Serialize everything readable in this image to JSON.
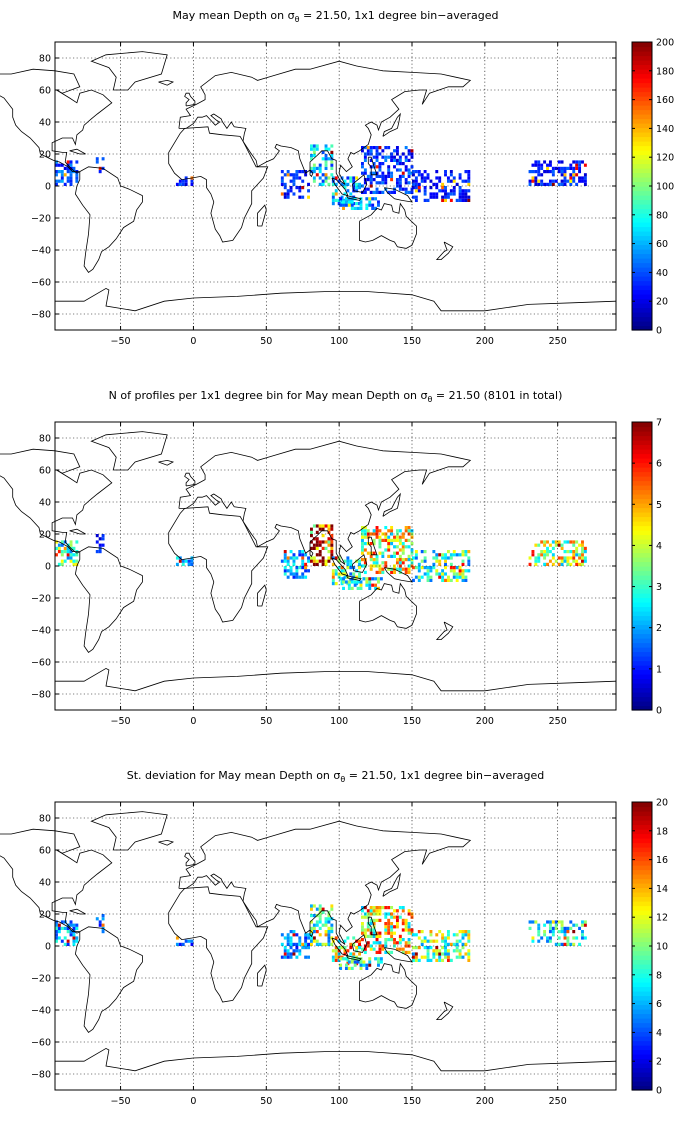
{
  "chart_data": [
    {
      "type": "heatmap",
      "title_pre": "May mean Depth on σ",
      "title_sub": "θ",
      "title_post": " = 21.50, 1x1 degree bin−averaged",
      "xlim": [
        -95,
        290
      ],
      "ylim": [
        -90,
        90
      ],
      "x_ticks": [
        -50,
        0,
        50,
        100,
        150,
        200,
        250
      ],
      "x_tick_labels": [
        "−50",
        "0",
        "50",
        "100",
        "150",
        "200",
        "250"
      ],
      "y_ticks": [
        80,
        60,
        40,
        20,
        0,
        -20,
        -40,
        -60,
        -80
      ],
      "y_tick_labels": [
        "80",
        "60",
        "40",
        "20",
        "0",
        "−20",
        "−40",
        "−60",
        "−80"
      ],
      "grid": true,
      "colormap": "jet",
      "colorbar": {
        "min": 0,
        "max": 200,
        "ticks": [
          0,
          20,
          40,
          60,
          80,
          100,
          120,
          140,
          160,
          180,
          200
        ],
        "tick_labels": [
          "0",
          "20",
          "40",
          "60",
          "80",
          "100",
          "120",
          "140",
          "160",
          "180",
          "200"
        ]
      },
      "data_regions": [
        {
          "lon": [
            -95,
            -80
          ],
          "lat": [
            0,
            15
          ],
          "value": 40
        },
        {
          "lon": [
            -67,
            -62
          ],
          "lat": [
            8,
            20
          ],
          "value": 30
        },
        {
          "lon": [
            -12,
            0
          ],
          "lat": [
            0,
            5
          ],
          "value": 30
        },
        {
          "lon": [
            60,
            80
          ],
          "lat": [
            -8,
            10
          ],
          "value": 30
        },
        {
          "lon": [
            80,
            95
          ],
          "lat": [
            0,
            25
          ],
          "value": 70
        },
        {
          "lon": [
            95,
            115
          ],
          "lat": [
            -12,
            5
          ],
          "value": 60
        },
        {
          "lon": [
            115,
            150
          ],
          "lat": [
            -5,
            25
          ],
          "value": 35
        },
        {
          "lon": [
            150,
            190
          ],
          "lat": [
            -10,
            10
          ],
          "value": 30
        },
        {
          "lon": [
            100,
            130
          ],
          "lat": [
            -15,
            -8
          ],
          "value": 55
        },
        {
          "lon": [
            230,
            270
          ],
          "lat": [
            0,
            15
          ],
          "value": 30
        }
      ]
    },
    {
      "type": "heatmap",
      "title_pre": "N of profiles per 1x1 degree bin for May mean Depth on σ",
      "title_sub": "θ",
      "title_post": " = 21.50 (8101 in total)",
      "xlim": [
        -95,
        290
      ],
      "ylim": [
        -90,
        90
      ],
      "x_ticks": [
        -50,
        0,
        50,
        100,
        150,
        200,
        250
      ],
      "x_tick_labels": [
        "−50",
        "0",
        "50",
        "100",
        "150",
        "200",
        "250"
      ],
      "y_ticks": [
        80,
        60,
        40,
        20,
        0,
        -20,
        -40,
        -60,
        -80
      ],
      "y_tick_labels": [
        "80",
        "60",
        "40",
        "20",
        "0",
        "−20",
        "−40",
        "−60",
        "−80"
      ],
      "grid": true,
      "colormap": "jet",
      "colorbar": {
        "min": 0,
        "max": 7,
        "ticks": [
          0,
          1,
          2,
          3,
          4,
          5,
          6,
          7
        ],
        "tick_labels": [
          "0",
          "1",
          "2",
          "3",
          "4",
          "5",
          "6",
          "7"
        ]
      },
      "data_regions": [
        {
          "lon": [
            -95,
            -80
          ],
          "lat": [
            0,
            15
          ],
          "value": 3
        },
        {
          "lon": [
            -67,
            -62
          ],
          "lat": [
            8,
            20
          ],
          "value": 1
        },
        {
          "lon": [
            -12,
            0
          ],
          "lat": [
            0,
            5
          ],
          "value": 2
        },
        {
          "lon": [
            60,
            80
          ],
          "lat": [
            -8,
            10
          ],
          "value": 2
        },
        {
          "lon": [
            80,
            95
          ],
          "lat": [
            0,
            25
          ],
          "value": 6.5
        },
        {
          "lon": [
            95,
            115
          ],
          "lat": [
            -12,
            5
          ],
          "value": 3
        },
        {
          "lon": [
            115,
            150
          ],
          "lat": [
            -5,
            25
          ],
          "value": 4
        },
        {
          "lon": [
            150,
            190
          ],
          "lat": [
            -10,
            10
          ],
          "value": 3
        },
        {
          "lon": [
            100,
            130
          ],
          "lat": [
            -15,
            -8
          ],
          "value": 3
        },
        {
          "lon": [
            230,
            270
          ],
          "lat": [
            0,
            15
          ],
          "value": 4
        }
      ]
    },
    {
      "type": "heatmap",
      "title_pre": "St. deviation for May mean Depth on σ",
      "title_sub": "θ",
      "title_post": " = 21.50, 1x1 degree bin−averaged",
      "xlim": [
        -95,
        290
      ],
      "ylim": [
        -90,
        90
      ],
      "x_ticks": [
        -50,
        0,
        50,
        100,
        150,
        200,
        250
      ],
      "x_tick_labels": [
        "−50",
        "0",
        "50",
        "100",
        "150",
        "200",
        "250"
      ],
      "y_ticks": [
        80,
        60,
        40,
        20,
        0,
        -20,
        -40,
        -60,
        -80
      ],
      "y_tick_labels": [
        "80",
        "60",
        "40",
        "20",
        "0",
        "−20",
        "−40",
        "−60",
        "−80"
      ],
      "grid": true,
      "colormap": "jet",
      "colorbar": {
        "min": 0,
        "max": 20,
        "ticks": [
          0,
          2,
          4,
          6,
          8,
          10,
          12,
          14,
          16,
          18,
          20
        ],
        "tick_labels": [
          "0",
          "2",
          "4",
          "6",
          "8",
          "10",
          "12",
          "14",
          "16",
          "18",
          "20"
        ]
      },
      "data_regions": [
        {
          "lon": [
            -95,
            -80
          ],
          "lat": [
            0,
            15
          ],
          "value": 6
        },
        {
          "lon": [
            -67,
            -62
          ],
          "lat": [
            8,
            20
          ],
          "value": 4
        },
        {
          "lon": [
            -12,
            0
          ],
          "lat": [
            0,
            5
          ],
          "value": 4
        },
        {
          "lon": [
            60,
            80
          ],
          "lat": [
            -8,
            10
          ],
          "value": 5
        },
        {
          "lon": [
            80,
            95
          ],
          "lat": [
            0,
            25
          ],
          "value": 9
        },
        {
          "lon": [
            95,
            115
          ],
          "lat": [
            -12,
            5
          ],
          "value": 12
        },
        {
          "lon": [
            115,
            150
          ],
          "lat": [
            -5,
            25
          ],
          "value": 12
        },
        {
          "lon": [
            150,
            190
          ],
          "lat": [
            -10,
            10
          ],
          "value": 10
        },
        {
          "lon": [
            100,
            130
          ],
          "lat": [
            -15,
            -8
          ],
          "value": 8
        },
        {
          "lon": [
            230,
            270
          ],
          "lat": [
            0,
            15
          ],
          "value": 8
        }
      ]
    }
  ]
}
